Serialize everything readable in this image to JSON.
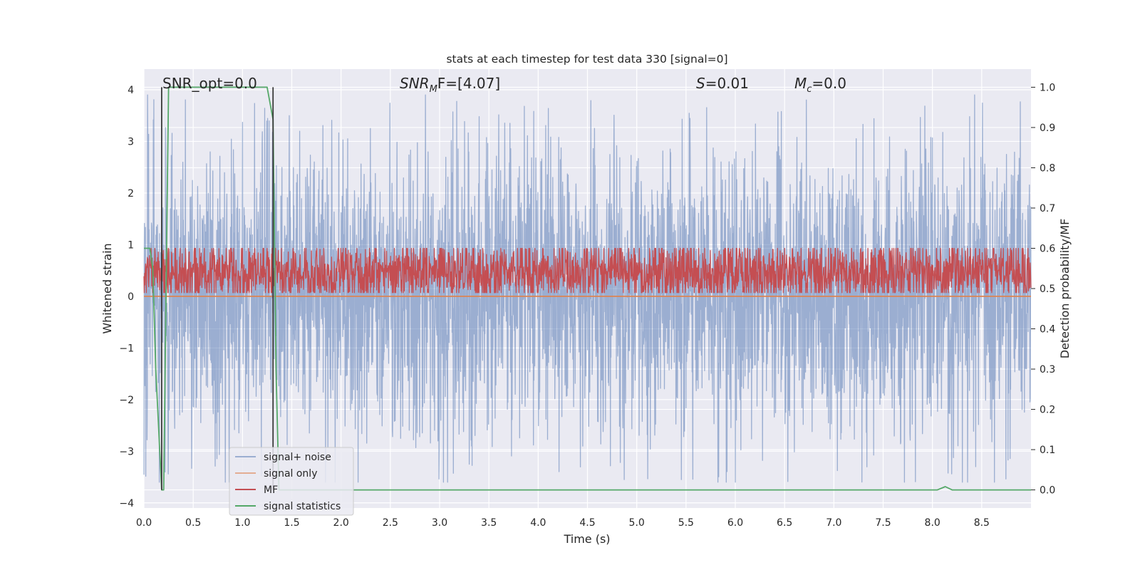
{
  "chart_data": {
    "type": "line",
    "title": "stats at each timestep for test data 330 [signal=0]",
    "xlabel": "Time (s)",
    "ylabel": "Whitened strain",
    "y2label": "Detection probability/MF",
    "xlim": [
      0,
      9.0
    ],
    "ylim": [
      -4.1,
      4.4
    ],
    "y2lim": [
      -0.045,
      1.045
    ],
    "x_ticks": [
      "0.0",
      "0.5",
      "1.0",
      "1.5",
      "2.0",
      "2.5",
      "3.0",
      "3.5",
      "4.0",
      "4.5",
      "5.0",
      "5.5",
      "6.0",
      "6.5",
      "7.0",
      "7.5",
      "8.0",
      "8.5"
    ],
    "y_ticks": [
      "4",
      "3",
      "2",
      "1",
      "0",
      "−1",
      "−2",
      "−3",
      "−4"
    ],
    "y2_ticks": [
      "1.0",
      "0.9",
      "0.8",
      "0.7",
      "0.6",
      "0.5",
      "0.4",
      "0.3",
      "0.2",
      "0.1",
      "0.0"
    ],
    "grid": true,
    "annotations": {
      "snr_opt": "SNR_opt=0.0",
      "snr_mf_sym": "SNR",
      "snr_mf_sub": "M",
      "snr_mf_rest": "F=[4.07]",
      "s_sym": "S",
      "s_rest": "=0.01",
      "mc_sym": "M",
      "mc_sub": "c",
      "mc_rest": "=0.0"
    },
    "legend": {
      "position": "lower-left",
      "entries": [
        "signal+ noise",
        "signal only",
        "MF",
        "signal statistics"
      ]
    },
    "series": [
      {
        "name": "signal+ noise",
        "color": "#4c72b0",
        "opacity": 0.5,
        "axis": "left",
        "noise": true,
        "mean": 0.0,
        "band": [
          -1.3,
          1.4
        ],
        "peak_max": 3.9,
        "peak_min": -3.6
      },
      {
        "name": "signal only",
        "color": "#dd8452",
        "axis": "left",
        "x": [
          0.0,
          9.0
        ],
        "y": [
          0.0,
          0.0
        ]
      },
      {
        "name": "MF",
        "color": "#c44e52",
        "axis": "right",
        "noise": true,
        "mean": 0.53,
        "band": [
          0.5,
          0.58
        ],
        "peak_max": 0.6,
        "peak_min": 0.49
      },
      {
        "name": "signal statistics",
        "color": "#55a868",
        "axis": "right",
        "x": [
          0.0,
          0.06,
          0.09,
          0.12,
          0.18,
          0.2,
          0.25,
          1.25,
          1.31,
          1.34,
          1.37,
          8.0,
          8.05,
          8.13,
          8.2,
          8.3,
          9.0
        ],
        "y": [
          0.6,
          0.6,
          0.55,
          0.3,
          0.0,
          0.0,
          1.0,
          1.0,
          0.92,
          0.3,
          0.0,
          0.0,
          0.0,
          0.008,
          0.0,
          0.0,
          0.0
        ]
      }
    ],
    "markers": [
      {
        "x": 0.18,
        "y_from": 0.0,
        "y_to": 1.0,
        "color": "#3a3a3a"
      },
      {
        "x": 1.31,
        "y_from": 0.0,
        "y_to": 1.0,
        "color": "#3a3a3a"
      }
    ]
  }
}
